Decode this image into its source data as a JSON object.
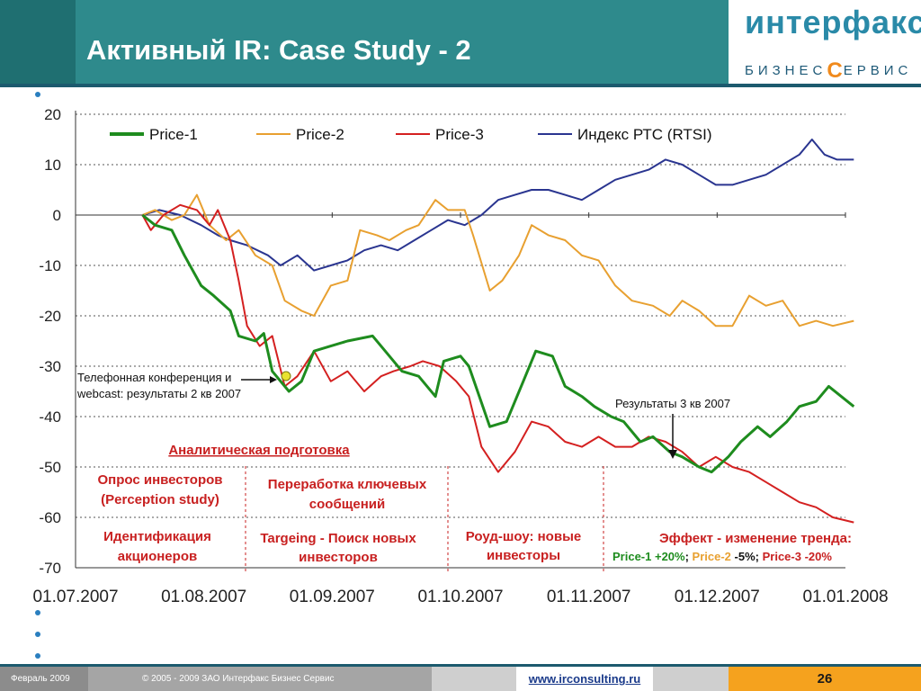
{
  "slide": {
    "title": "Активный IR: Case Study - 2",
    "logo_main": "интерфакс",
    "logo_sub_pre": "БИЗНЕС",
    "logo_sub_c": "С",
    "logo_sub_post": "ЕРВИС"
  },
  "footer": {
    "date": "Февраль 2009",
    "copyright": "© 2005 - 2009 ЗАО Интерфакс Бизнес Сервис",
    "url": "www.irconsulting.ru",
    "page": "26"
  },
  "colors": {
    "header": "#2e8a8c",
    "price1": "#1e8c1e",
    "price2": "#e8a030",
    "price3": "#d42020",
    "rtsi": "#2a3590",
    "annotation_red": "#c82020",
    "page_badge": "#f5a21e"
  },
  "chart_data": {
    "type": "line",
    "ylim": [
      -70,
      20
    ],
    "yticks": [
      "20",
      "10",
      "0",
      "-10",
      "-20",
      "-30",
      "-40",
      "-50",
      "-60",
      "-70"
    ],
    "xticks": [
      "01.07.2007",
      "01.08.2007",
      "01.09.2007",
      "01.10.2007",
      "01.11.2007",
      "01.12.2007",
      "01.01.2008"
    ],
    "grid": true,
    "legend_position": "top",
    "series": [
      {
        "name": "Price-1",
        "color": "#1e8c1e",
        "points": [
          [
            "2007-07-17",
            0
          ],
          [
            "2007-07-20",
            -2
          ],
          [
            "2007-07-24",
            -3
          ],
          [
            "2007-07-27",
            -8
          ],
          [
            "2007-07-31",
            -14
          ],
          [
            "2007-08-03",
            -16
          ],
          [
            "2007-08-07",
            -19
          ],
          [
            "2007-08-09",
            -24
          ],
          [
            "2007-08-13",
            -25
          ],
          [
            "2007-08-15",
            -23.5
          ],
          [
            "2007-08-17",
            -31
          ],
          [
            "2007-08-21",
            -35
          ],
          [
            "2007-08-24",
            -33
          ],
          [
            "2007-08-27",
            -27
          ],
          [
            "2007-08-31",
            -26
          ],
          [
            "2007-09-04",
            -25
          ],
          [
            "2007-09-10",
            -24
          ],
          [
            "2007-09-13",
            -27
          ],
          [
            "2007-09-17",
            -31
          ],
          [
            "2007-09-21",
            -32
          ],
          [
            "2007-09-25",
            -36
          ],
          [
            "2007-09-27",
            -29
          ],
          [
            "2007-10-01",
            -28
          ],
          [
            "2007-10-03",
            -30
          ],
          [
            "2007-10-08",
            -42
          ],
          [
            "2007-10-12",
            -41
          ],
          [
            "2007-10-16",
            -33
          ],
          [
            "2007-10-19",
            -27
          ],
          [
            "2007-10-23",
            -28
          ],
          [
            "2007-10-26",
            -34
          ],
          [
            "2007-10-30",
            -36
          ],
          [
            "2007-11-02",
            -38
          ],
          [
            "2007-11-06",
            -40
          ],
          [
            "2007-11-09",
            -41
          ],
          [
            "2007-11-13",
            -45
          ],
          [
            "2007-11-16",
            -44
          ],
          [
            "2007-11-20",
            -47
          ],
          [
            "2007-11-23",
            -48
          ],
          [
            "2007-11-27",
            -50
          ],
          [
            "2007-11-30",
            -51
          ],
          [
            "2007-12-04",
            -48
          ],
          [
            "2007-12-07",
            -45
          ],
          [
            "2007-12-11",
            -42
          ],
          [
            "2007-12-14",
            -44
          ],
          [
            "2007-12-18",
            -41
          ],
          [
            "2007-12-21",
            -38
          ],
          [
            "2007-12-25",
            -37
          ],
          [
            "2007-12-28",
            -34
          ],
          [
            "2008-01-03",
            -38
          ]
        ]
      },
      {
        "name": "Price-2",
        "color": "#e8a030",
        "points": [
          [
            "2007-07-17",
            0
          ],
          [
            "2007-07-20",
            1
          ],
          [
            "2007-07-24",
            -1
          ],
          [
            "2007-07-27",
            0
          ],
          [
            "2007-07-30",
            4
          ],
          [
            "2007-08-02",
            -2
          ],
          [
            "2007-08-06",
            -5
          ],
          [
            "2007-08-09",
            -3
          ],
          [
            "2007-08-13",
            -8
          ],
          [
            "2007-08-17",
            -10
          ],
          [
            "2007-08-20",
            -17
          ],
          [
            "2007-08-24",
            -19
          ],
          [
            "2007-08-27",
            -20
          ],
          [
            "2007-08-31",
            -14
          ],
          [
            "2007-09-04",
            -13
          ],
          [
            "2007-09-07",
            -3
          ],
          [
            "2007-09-11",
            -4
          ],
          [
            "2007-09-14",
            -5
          ],
          [
            "2007-09-18",
            -3
          ],
          [
            "2007-09-21",
            -2
          ],
          [
            "2007-09-25",
            3
          ],
          [
            "2007-09-28",
            1
          ],
          [
            "2007-10-02",
            1
          ],
          [
            "2007-10-04",
            -4
          ],
          [
            "2007-10-08",
            -15
          ],
          [
            "2007-10-11",
            -13
          ],
          [
            "2007-10-15",
            -8
          ],
          [
            "2007-10-18",
            -2
          ],
          [
            "2007-10-22",
            -4
          ],
          [
            "2007-10-26",
            -5
          ],
          [
            "2007-10-30",
            -8
          ],
          [
            "2007-11-03",
            -9
          ],
          [
            "2007-11-07",
            -14
          ],
          [
            "2007-11-11",
            -17
          ],
          [
            "2007-11-16",
            -18
          ],
          [
            "2007-11-20",
            -20
          ],
          [
            "2007-11-23",
            -17
          ],
          [
            "2007-11-27",
            -19
          ],
          [
            "2007-12-01",
            -22
          ],
          [
            "2007-12-05",
            -22
          ],
          [
            "2007-12-09",
            -16
          ],
          [
            "2007-12-13",
            -18
          ],
          [
            "2007-12-17",
            -17
          ],
          [
            "2007-12-21",
            -22
          ],
          [
            "2007-12-25",
            -21
          ],
          [
            "2007-12-29",
            -22
          ],
          [
            "2008-01-03",
            -21
          ]
        ]
      },
      {
        "name": "Price-3",
        "color": "#d42020",
        "points": [
          [
            "2007-07-17",
            0
          ],
          [
            "2007-07-19",
            -3
          ],
          [
            "2007-07-22",
            0
          ],
          [
            "2007-07-26",
            2
          ],
          [
            "2007-07-30",
            1
          ],
          [
            "2007-08-02",
            -2
          ],
          [
            "2007-08-04",
            1
          ],
          [
            "2007-08-07",
            -5
          ],
          [
            "2007-08-09",
            -13
          ],
          [
            "2007-08-11",
            -22
          ],
          [
            "2007-08-14",
            -26
          ],
          [
            "2007-08-17",
            -24
          ],
          [
            "2007-08-20",
            -34
          ],
          [
            "2007-08-23",
            -32
          ],
          [
            "2007-08-27",
            -27
          ],
          [
            "2007-08-31",
            -33
          ],
          [
            "2007-09-04",
            -31
          ],
          [
            "2007-09-08",
            -35
          ],
          [
            "2007-09-12",
            -32
          ],
          [
            "2007-09-15",
            -31
          ],
          [
            "2007-09-19",
            -30
          ],
          [
            "2007-09-22",
            -29
          ],
          [
            "2007-09-26",
            -30
          ],
          [
            "2007-09-30",
            -33
          ],
          [
            "2007-10-03",
            -36
          ],
          [
            "2007-10-06",
            -46
          ],
          [
            "2007-10-10",
            -51
          ],
          [
            "2007-10-14",
            -47
          ],
          [
            "2007-10-18",
            -41
          ],
          [
            "2007-10-22",
            -42
          ],
          [
            "2007-10-26",
            -45
          ],
          [
            "2007-10-30",
            -46
          ],
          [
            "2007-11-03",
            -44
          ],
          [
            "2007-11-07",
            -46
          ],
          [
            "2007-11-11",
            -46
          ],
          [
            "2007-11-15",
            -44
          ],
          [
            "2007-11-19",
            -45
          ],
          [
            "2007-11-23",
            -47
          ],
          [
            "2007-11-27",
            -50
          ],
          [
            "2007-12-01",
            -48
          ],
          [
            "2007-12-05",
            -50
          ],
          [
            "2007-12-09",
            -51
          ],
          [
            "2007-12-13",
            -53
          ],
          [
            "2007-12-17",
            -55
          ],
          [
            "2007-12-21",
            -57
          ],
          [
            "2007-12-25",
            -58
          ],
          [
            "2007-12-29",
            -60
          ],
          [
            "2008-01-03",
            -61
          ]
        ]
      },
      {
        "name": "Индекс РТС (RTSI)",
        "color": "#2a3590",
        "points": [
          [
            "2007-07-17",
            0
          ],
          [
            "2007-07-21",
            1
          ],
          [
            "2007-07-26",
            0
          ],
          [
            "2007-07-31",
            -2
          ],
          [
            "2007-08-04",
            -4
          ],
          [
            "2007-08-07",
            -5
          ],
          [
            "2007-08-11",
            -6
          ],
          [
            "2007-08-16",
            -8
          ],
          [
            "2007-08-19",
            -10
          ],
          [
            "2007-08-23",
            -8
          ],
          [
            "2007-08-27",
            -11
          ],
          [
            "2007-08-31",
            -10
          ],
          [
            "2007-09-04",
            -9
          ],
          [
            "2007-09-08",
            -7
          ],
          [
            "2007-09-12",
            -6
          ],
          [
            "2007-09-16",
            -7
          ],
          [
            "2007-09-20",
            -5
          ],
          [
            "2007-09-24",
            -3
          ],
          [
            "2007-09-28",
            -1
          ],
          [
            "2007-10-02",
            -2
          ],
          [
            "2007-10-06",
            0
          ],
          [
            "2007-10-10",
            3
          ],
          [
            "2007-10-14",
            4
          ],
          [
            "2007-10-18",
            5
          ],
          [
            "2007-10-22",
            5
          ],
          [
            "2007-10-26",
            4
          ],
          [
            "2007-10-30",
            3
          ],
          [
            "2007-11-03",
            5
          ],
          [
            "2007-11-07",
            7
          ],
          [
            "2007-11-11",
            8
          ],
          [
            "2007-11-15",
            9
          ],
          [
            "2007-11-19",
            11
          ],
          [
            "2007-11-23",
            10
          ],
          [
            "2007-11-27",
            8
          ],
          [
            "2007-12-01",
            6
          ],
          [
            "2007-12-05",
            6
          ],
          [
            "2007-12-09",
            7
          ],
          [
            "2007-12-13",
            8
          ],
          [
            "2007-12-17",
            10
          ],
          [
            "2007-12-21",
            12
          ],
          [
            "2007-12-24",
            15
          ],
          [
            "2007-12-27",
            12
          ],
          [
            "2007-12-30",
            11
          ],
          [
            "2008-01-03",
            11
          ]
        ]
      }
    ],
    "annotations": {
      "conference": "Телефонная конференция и webcast: результаты 2 кв 2007",
      "results3q": "Результаты 3 кв 2007",
      "analytical_prep": "Аналитическая подготовка",
      "survey": "Опрос инвесторов (Perception study)",
      "key_messages": "Переработка ключевых сообщений",
      "identification": "Идентификация акционеров",
      "targeting": "Targeing - Поиск новых инвесторов",
      "roadshow": "Роуд-шоу: новые инвесторы",
      "effect_title": "Эффект - изменение тренда:",
      "effect_p1": "Price-1 +20%",
      "effect_p2": "Price-2",
      "effect_p2_val": "-5%",
      "effect_p3": "Price-3 -20%",
      "sep": ";"
    }
  }
}
